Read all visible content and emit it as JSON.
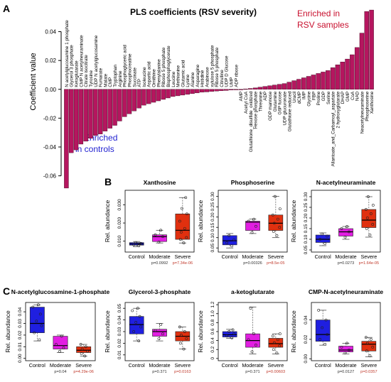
{
  "panels": {
    "A": {
      "letter": "A",
      "annotation_right": [
        "Enriched in",
        "RSV samples"
      ],
      "annotation_left": [
        "Enriched",
        "in controls"
      ]
    },
    "B": {
      "letter": "B"
    },
    "C": {
      "letter": "C"
    }
  },
  "colors": {
    "bar": "#b5165f",
    "control": "#1f1fe0",
    "moderate": "#e21ee2",
    "severe": "#e0300f",
    "enriched_rsv": "#c8102e",
    "enriched_controls": "#1f1fd0",
    "pval": "#c0392b"
  },
  "chart_data": [
    {
      "type": "bar",
      "panel": "A",
      "title": "PLS coefficients (RSV severity)",
      "ylabel": "Coefficient value",
      "xlabel": "",
      "ylim": [
        -0.072,
        0.058
      ],
      "yticks": [
        0.04,
        0.02,
        0.0,
        -0.02,
        -0.04,
        -0.06
      ],
      "ytick_labels": [
        "0.04",
        "0.02",
        "0.00",
        "-0.02",
        "-0.04",
        "-0.06"
      ],
      "grid": false,
      "categories": [
        "N acetylglucosamine 1 phosphate",
        "Glycerol 3 phosphate",
        "Ketoglutarate",
        "CMP N acetylneuraminate",
        "Citrate isocitrate",
        "Tyrosine",
        "UDP N acetylglucosamine",
        "Fumarate",
        "Malate",
        "CMP",
        "Tryptophan",
        "Arginine",
        "Phosphoglyceric acid",
        "Phosphocreatine",
        "Succinate",
        "ATP",
        "Isoleucine",
        "Aspartic acid",
        "Ornithine",
        "Phenylalanine",
        "Ribose 5 phosphate",
        "Bisphosphoglycerate",
        "Leucine",
        "Methionine",
        "Glutamic acid",
        "Lysine",
        "Alanine",
        "Asparagine",
        "Histidine",
        "Arabinose",
        "xylulose 5 phosphate",
        "Ribose 5 phosphate",
        "Citrulline",
        "UDP D Glucose",
        "UMP",
        "ADP ribose",
        "AMP",
        "Acetyl CoA",
        "Glutathione_disulfide_oxidized",
        "Hexose phosphate",
        "Threonine",
        "ADP",
        "GDP mannose",
        "Glutamine",
        "G6P fucose",
        "UDP glucuronate",
        "Glutathione reduced",
        "Uracil",
        "dCMP",
        "IMP",
        "Glycine",
        "FBP",
        "Proline",
        "GDP",
        "Serine",
        "Allantoate_and_Carbamoyl_aspartate",
        "2 hydroxyglutarate",
        "DHAP",
        "GMP",
        "CoA",
        "NAD",
        "Neacetylneuraminate",
        "Phosphoserine",
        "Xanthosine"
      ],
      "values": [
        -0.0685,
        -0.044,
        -0.042,
        -0.038,
        -0.036,
        -0.034,
        -0.032,
        -0.031,
        -0.029,
        -0.027,
        -0.025,
        -0.022,
        -0.019,
        -0.017,
        -0.015,
        -0.013,
        -0.011,
        -0.01,
        -0.009,
        -0.008,
        -0.007,
        -0.006,
        -0.005,
        -0.0045,
        -0.004,
        -0.0035,
        -0.003,
        -0.0025,
        -0.002,
        -0.0018,
        -0.0015,
        -0.0012,
        -0.001,
        -0.0008,
        -0.0005,
        -0.0003,
        0.0,
        0.0003,
        0.0006,
        0.001,
        0.0015,
        0.002,
        0.0025,
        0.003,
        0.0035,
        0.004,
        0.005,
        0.006,
        0.007,
        0.008,
        0.009,
        0.01,
        0.011,
        0.012,
        0.013,
        0.015,
        0.017,
        0.019,
        0.021,
        0.024,
        0.029,
        0.039,
        0.054,
        0.055
      ],
      "label_rotation": "vertical, text reads bottom-to-top"
    },
    {
      "type": "box",
      "panel": "B",
      "title": "Xanthosine",
      "ylabel": "Rel. abundance",
      "categories": [
        "Control",
        "Moderate",
        "Severe"
      ],
      "ylim": [
        0.004,
        0.038
      ],
      "yticks": [
        0.01,
        0.02,
        0.03
      ],
      "ytick_labels": [
        "0.010",
        "0.020",
        "0.030"
      ],
      "boxes": [
        {
          "min": 0.007,
          "q1": 0.0078,
          "median": 0.0085,
          "q3": 0.0092,
          "max": 0.0098,
          "points": [
            0.0075,
            0.008,
            0.0088,
            0.0092,
            0.0085
          ]
        },
        {
          "min": 0.009,
          "q1": 0.0098,
          "median": 0.0125,
          "q3": 0.0135,
          "max": 0.016,
          "points": [
            0.0095,
            0.0125,
            0.0135,
            0.016
          ]
        },
        {
          "min": 0.009,
          "q1": 0.011,
          "median": 0.016,
          "q3": 0.025,
          "max": 0.034,
          "points": [
            0.009,
            0.011,
            0.012,
            0.015,
            0.017,
            0.021,
            0.025,
            0.028,
            0.034
          ]
        }
      ],
      "pvalues": [
        "",
        "p=0.0992",
        "p=7.34e-06"
      ]
    },
    {
      "type": "box",
      "panel": "B",
      "title": "Phosphoserine",
      "ylabel": "Rel. abundance",
      "categories": [
        "Control",
        "Moderate",
        "Severe"
      ],
      "ylim": [
        0.03,
        0.33
      ],
      "yticks": [
        0.05,
        0.1,
        0.15,
        0.2,
        0.25,
        0.3
      ],
      "ytick_labels": [
        "0.05",
        "0.10",
        "0.15",
        "0.20",
        "0.25",
        "0.30"
      ],
      "boxes": [
        {
          "min": 0.05,
          "q1": 0.065,
          "median": 0.085,
          "q3": 0.11,
          "max": 0.12,
          "points": [
            0.06,
            0.075,
            0.09,
            0.11
          ]
        },
        {
          "min": 0.12,
          "q1": 0.135,
          "median": 0.175,
          "q3": 0.18,
          "max": 0.19,
          "points": [
            0.125,
            0.155,
            0.18,
            0.19
          ]
        },
        {
          "min": 0.1,
          "q1": 0.135,
          "median": 0.17,
          "q3": 0.21,
          "max": 0.3,
          "points": [
            0.11,
            0.13,
            0.15,
            0.17,
            0.19,
            0.21,
            0.24,
            0.3
          ]
        }
      ],
      "pvalues": [
        "",
        "p=0.00326",
        "p=8.5e-05"
      ]
    },
    {
      "type": "box",
      "panel": "B",
      "title": "N-acetylneuraminate",
      "ylabel": "Rel. abundance",
      "categories": [
        "Control",
        "Moderate",
        "Severe"
      ],
      "ylim": [
        0.04,
        0.33
      ],
      "yticks": [
        0.05,
        0.1,
        0.15,
        0.2,
        0.25,
        0.3
      ],
      "ytick_labels": [
        "0.05",
        "0.10",
        "0.15",
        "0.20",
        "0.25",
        "0.30"
      ],
      "boxes": [
        {
          "min": 0.07,
          "q1": 0.085,
          "median": 0.1,
          "q3": 0.12,
          "max": 0.13,
          "points": [
            0.08,
            0.1,
            0.115,
            0.125
          ]
        },
        {
          "min": 0.1,
          "q1": 0.115,
          "median": 0.135,
          "q3": 0.15,
          "max": 0.16,
          "points": [
            0.11,
            0.135,
            0.15,
            0.16
          ]
        },
        {
          "min": 0.11,
          "q1": 0.155,
          "median": 0.19,
          "q3": 0.24,
          "max": 0.3,
          "points": [
            0.12,
            0.15,
            0.17,
            0.2,
            0.22,
            0.24,
            0.26,
            0.3
          ]
        }
      ],
      "pvalues": [
        "",
        "p=0.0273",
        "p=1.64e-05"
      ]
    },
    {
      "type": "box",
      "panel": "C",
      "title": "N-acetylglucosamine-1-phosphate",
      "ylabel": "Rel. abundance",
      "categories": [
        "Control",
        "Moderate",
        "Severe"
      ],
      "ylim": [
        -0.002,
        0.048
      ],
      "yticks": [
        0.0,
        0.01,
        0.02,
        0.03,
        0.04
      ],
      "ytick_labels": [
        "0.00",
        "0.01",
        "0.02",
        "0.03",
        "0.04"
      ],
      "boxes": [
        {
          "min": 0.015,
          "q1": 0.022,
          "median": 0.03,
          "q3": 0.044,
          "max": 0.046,
          "points": [
            0.016,
            0.022,
            0.028,
            0.032,
            0.038,
            0.044,
            0.046
          ]
        },
        {
          "min": 0.005,
          "q1": 0.008,
          "median": 0.011,
          "q3": 0.019,
          "max": 0.02,
          "points": [
            0.006,
            0.009,
            0.012,
            0.019
          ]
        },
        {
          "min": 0.002,
          "q1": 0.005,
          "median": 0.007,
          "q3": 0.01,
          "max": 0.012,
          "points": [
            0.002,
            0.004,
            0.006,
            0.008,
            0.01,
            0.012
          ]
        }
      ],
      "pvalues": [
        "",
        "p=0.04",
        "p=4.29e-06"
      ]
    },
    {
      "type": "box",
      "panel": "C",
      "title": "Glycerol-3-phosphate",
      "ylabel": "Rel. abundance",
      "categories": [
        "Control",
        "Moderate",
        "Severe"
      ],
      "ylim": [
        0.005,
        0.055
      ],
      "yticks": [
        0.01,
        0.02,
        0.03,
        0.04,
        0.05
      ],
      "ytick_labels": [
        "0.01",
        "0.02",
        "0.03",
        "0.04",
        "0.05"
      ],
      "boxes": [
        {
          "min": 0.022,
          "q1": 0.028,
          "median": 0.036,
          "q3": 0.043,
          "max": 0.05,
          "points": [
            0.022,
            0.03,
            0.034,
            0.038,
            0.043,
            0.048,
            0.05
          ]
        },
        {
          "min": 0.022,
          "q1": 0.026,
          "median": 0.03,
          "q3": 0.032,
          "max": 0.037,
          "points": [
            0.024,
            0.028,
            0.031,
            0.036
          ]
        },
        {
          "min": 0.015,
          "q1": 0.022,
          "median": 0.026,
          "q3": 0.03,
          "max": 0.034,
          "points": [
            0.015,
            0.02,
            0.024,
            0.027,
            0.03,
            0.034
          ]
        }
      ],
      "pvalues": [
        "",
        "p=0.371",
        "p=0.0163"
      ]
    },
    {
      "type": "box",
      "panel": "C",
      "title": "a-ketoglutarate",
      "ylabel": "Rel. abundance",
      "categories": [
        "Control",
        "Moderate",
        "Severe"
      ],
      "ylim": [
        -0.05,
        1.25
      ],
      "yticks": [
        0.0,
        0.2,
        0.4,
        0.6,
        0.8,
        1.0,
        1.2
      ],
      "ytick_labels": [
        "0",
        "0.2",
        "0.4",
        "0.6",
        "0.8",
        "1.0",
        "1.2"
      ],
      "boxes": [
        {
          "min": 0.45,
          "q1": 0.48,
          "median": 0.53,
          "q3": 0.6,
          "max": 0.65,
          "points": [
            0.46,
            0.5,
            0.55,
            0.6,
            0.64
          ]
        },
        {
          "min": 0.1,
          "q1": 0.25,
          "median": 0.4,
          "q3": 0.55,
          "max": 1.15,
          "points": [
            0.15,
            0.3,
            0.42,
            0.55,
            1.12
          ]
        },
        {
          "min": 0.1,
          "q1": 0.25,
          "median": 0.33,
          "q3": 0.45,
          "max": 0.55,
          "points": [
            0.12,
            0.2,
            0.28,
            0.35,
            0.42,
            0.5,
            0.55
          ]
        }
      ],
      "pvalues": [
        "",
        "p=0.371",
        "p=0.00603"
      ]
    },
    {
      "type": "box",
      "panel": "C",
      "title": "CMP-N-acetylneuraminate",
      "ylabel": "Rel. abundance",
      "categories": [
        "Control",
        "Moderate",
        "Severe"
      ],
      "ylim": [
        -0.002,
        0.058
      ],
      "yticks": [
        0.0,
        0.02,
        0.04
      ],
      "ytick_labels": [
        "0.00",
        "0.02",
        "0.04"
      ],
      "boxes": [
        {
          "min": 0.014,
          "q1": 0.018,
          "median": 0.025,
          "q3": 0.04,
          "max": 0.05,
          "points": [
            0.015,
            0.02,
            0.025,
            0.032,
            0.04,
            0.05
          ]
        },
        {
          "min": 0.005,
          "q1": 0.007,
          "median": 0.009,
          "q3": 0.013,
          "max": 0.016,
          "points": [
            0.006,
            0.009,
            0.012,
            0.016
          ]
        },
        {
          "min": 0.002,
          "q1": 0.008,
          "median": 0.015,
          "q3": 0.018,
          "max": 0.022,
          "points": [
            0.003,
            0.008,
            0.012,
            0.016,
            0.02,
            0.022
          ]
        }
      ],
      "pvalues": [
        "",
        "p=0.0127",
        "p=0.0357"
      ]
    }
  ]
}
